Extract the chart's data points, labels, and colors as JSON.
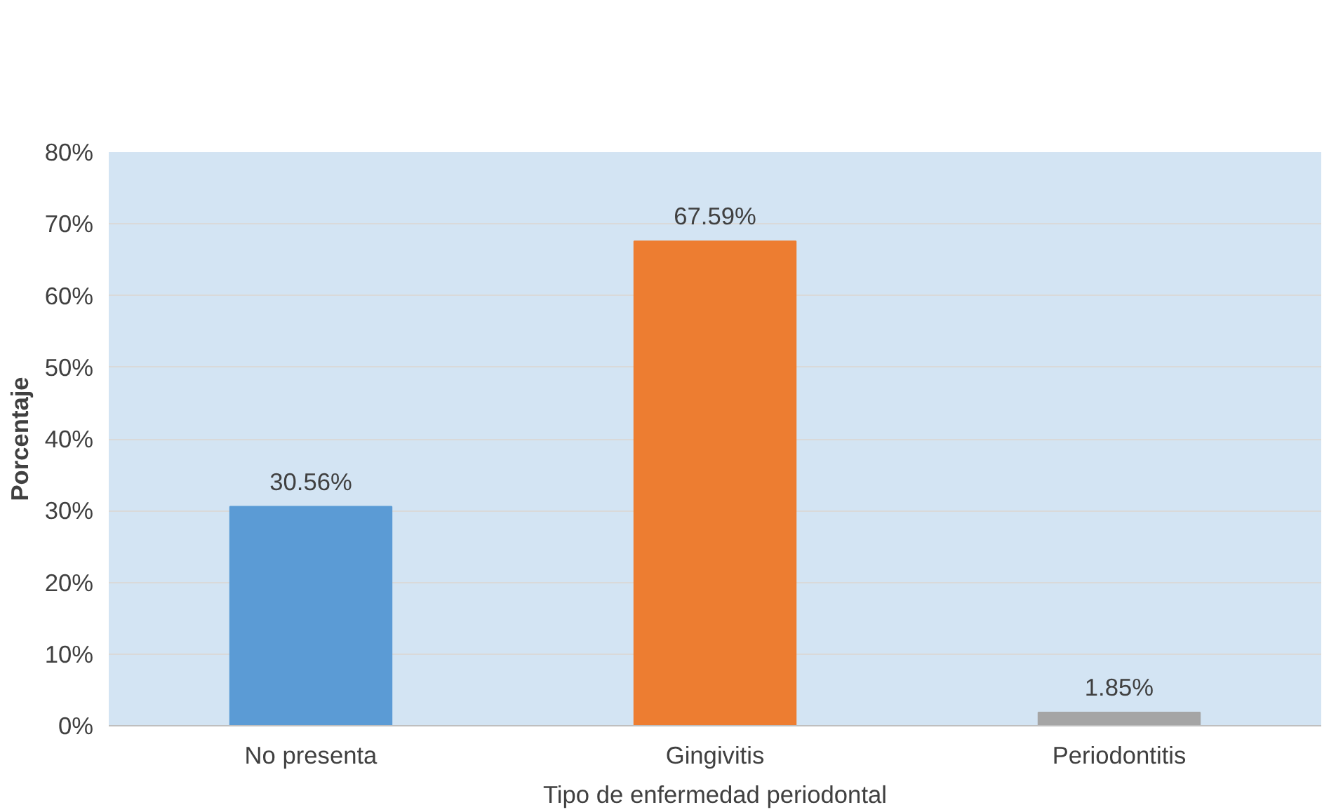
{
  "chart_data": {
    "type": "bar",
    "xlabel": "Tipo de enfermedad periodontal",
    "ylabel": "Porcentaje",
    "categories": [
      "No presenta",
      "Gingivitis",
      "Periodontitis"
    ],
    "values": [
      30.56,
      67.59,
      1.85
    ],
    "colors": [
      "#5b9bd5",
      "#ed7d31",
      "#a5a5a5"
    ],
    "value_labels": [
      "30.56%",
      "67.59%",
      "1.85%"
    ],
    "ylim": [
      0,
      80
    ],
    "yticks": [
      {
        "value": 0,
        "label": "0%"
      },
      {
        "value": 10,
        "label": "10%"
      },
      {
        "value": 20,
        "label": "20%"
      },
      {
        "value": 30,
        "label": "30%"
      },
      {
        "value": 40,
        "label": "40%"
      },
      {
        "value": 50,
        "label": "50%"
      },
      {
        "value": 60,
        "label": "60%"
      },
      {
        "value": 70,
        "label": "70%"
      },
      {
        "value": 80,
        "label": "80%"
      }
    ],
    "grid": "y"
  }
}
